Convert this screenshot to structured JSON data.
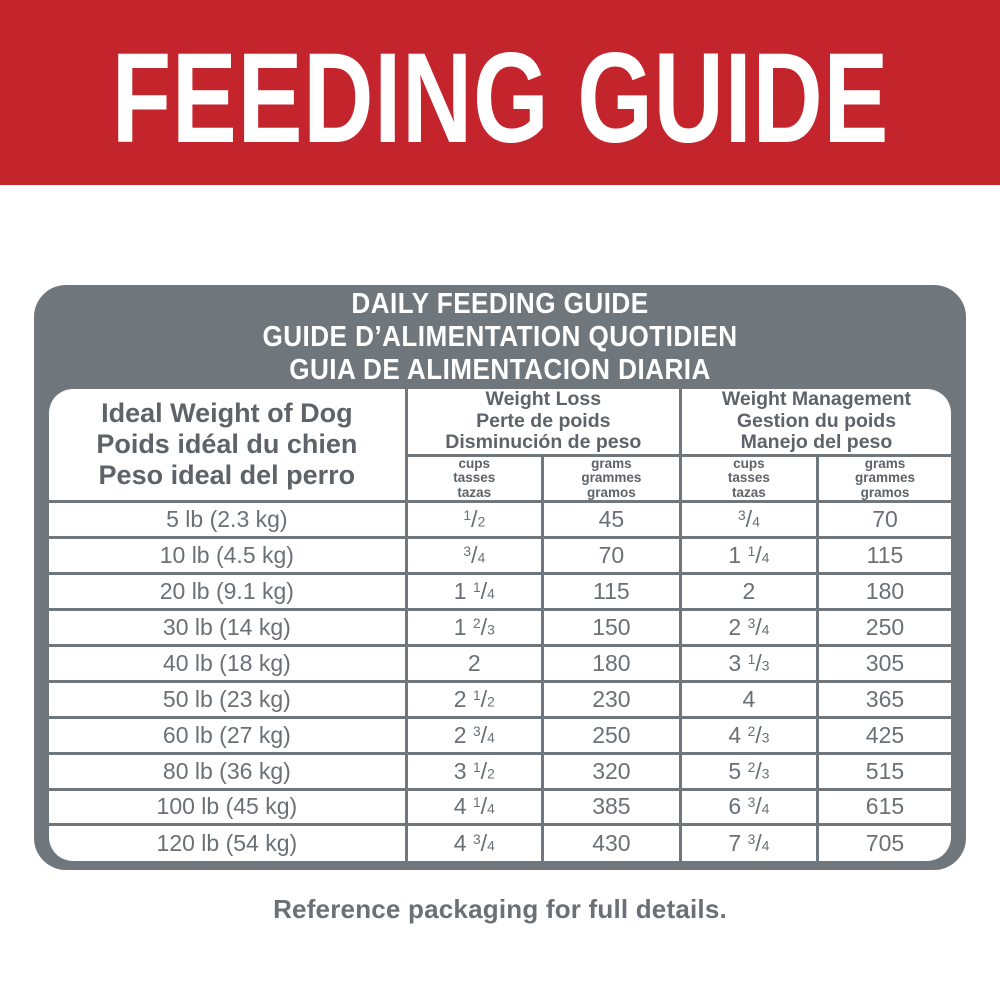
{
  "banner": {
    "title": "FEEDING GUIDE"
  },
  "card": {
    "title_lines": [
      "DAILY FEEDING GUIDE",
      "GUIDE D’ALIMENTATION QUOTIDIEN",
      "GUIA DE ALIMENTACION DIARIA"
    ],
    "table": {
      "header": {
        "ideal_weight": [
          "Ideal Weight of Dog",
          "Poids idéal du chien",
          "Peso ideal del perro"
        ],
        "weight_loss": [
          "Weight Loss",
          "Perte de poids",
          "Disminución de peso"
        ],
        "weight_management": [
          "Weight Management",
          "Gestion du poids",
          "Manejo del peso"
        ],
        "cups": [
          "cups",
          "tasses",
          "tazas"
        ],
        "grams": [
          "grams",
          "grammes",
          "gramos"
        ]
      },
      "rows": [
        {
          "weight": "5 lb (2.3 kg)",
          "wl_cups": "1/2",
          "wl_grams": "45",
          "wm_cups": "3/4",
          "wm_grams": "70"
        },
        {
          "weight": "10 lb (4.5 kg)",
          "wl_cups": "3/4",
          "wl_grams": "70",
          "wm_cups": "1 1/4",
          "wm_grams": "115"
        },
        {
          "weight": "20 lb (9.1 kg)",
          "wl_cups": "1 1/4",
          "wl_grams": "115",
          "wm_cups": "2",
          "wm_grams": "180"
        },
        {
          "weight": "30 lb (14 kg)",
          "wl_cups": "1 2/3",
          "wl_grams": "150",
          "wm_cups": "2 3/4",
          "wm_grams": "250"
        },
        {
          "weight": "40 lb (18 kg)",
          "wl_cups": "2",
          "wl_grams": "180",
          "wm_cups": "3 1/3",
          "wm_grams": "305"
        },
        {
          "weight": "50 lb (23 kg)",
          "wl_cups": "2 1/2",
          "wl_grams": "230",
          "wm_cups": "4",
          "wm_grams": "365"
        },
        {
          "weight": "60 lb (27 kg)",
          "wl_cups": "2 3/4",
          "wl_grams": "250",
          "wm_cups": "4 2/3",
          "wm_grams": "425"
        },
        {
          "weight": "80 lb (36 kg)",
          "wl_cups": "3 1/2",
          "wl_grams": "320",
          "wm_cups": "5 2/3",
          "wm_grams": "515"
        },
        {
          "weight": "100 lb (45 kg)",
          "wl_cups": "4 1/4",
          "wl_grams": "385",
          "wm_cups": "6 3/4",
          "wm_grams": "615"
        },
        {
          "weight": "120 lb (54 kg)",
          "wl_cups": "4 3/4",
          "wl_grams": "430",
          "wm_cups": "7 3/4",
          "wm_grams": "705"
        }
      ]
    }
  },
  "footer": {
    "note": "Reference packaging for full details."
  },
  "colors": {
    "banner_red": "#c4252d",
    "frame_gray": "#6f767c",
    "text_dark": "#5d6368",
    "text_data": "#6a7076"
  }
}
